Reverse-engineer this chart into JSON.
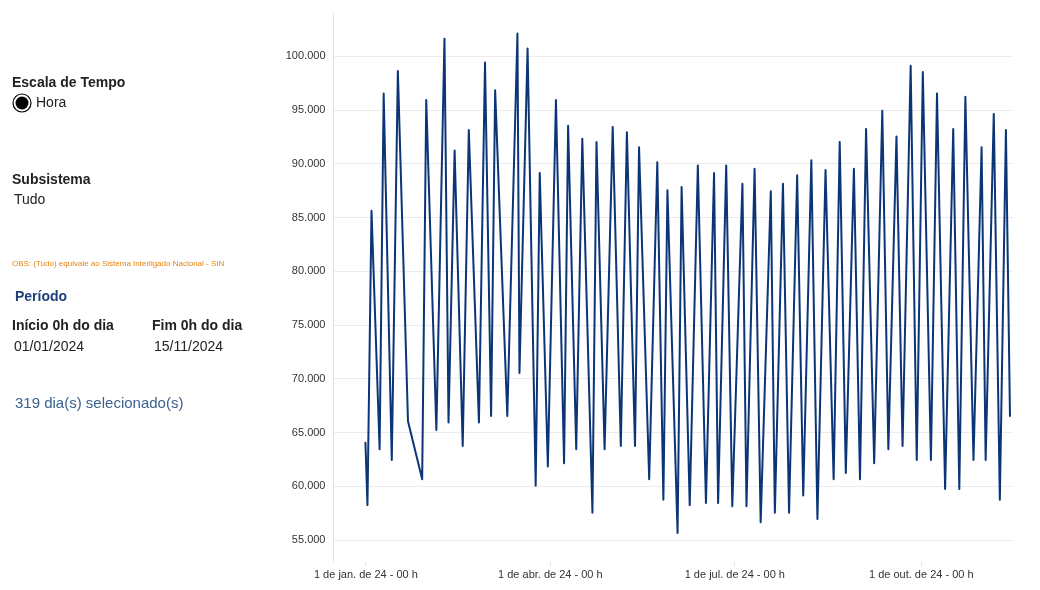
{
  "chart_data": {
    "type": "line",
    "x": [
      "2024-01-01",
      "2024-01-02",
      "2024-01-04",
      "2024-01-08",
      "2024-01-10",
      "2024-01-14",
      "2024-01-17",
      "2024-01-22",
      "2024-01-29",
      "2024-01-31",
      "2024-02-05",
      "2024-02-09",
      "2024-02-11",
      "2024-02-14",
      "2024-02-18",
      "2024-02-21",
      "2024-02-26",
      "2024-02-29",
      "2024-03-03",
      "2024-03-05",
      "2024-03-11",
      "2024-03-16",
      "2024-03-17",
      "2024-03-21",
      "2024-03-25",
      "2024-03-27",
      "2024-03-31",
      "2024-04-04",
      "2024-04-08",
      "2024-04-10",
      "2024-04-14",
      "2024-04-17",
      "2024-04-22",
      "2024-04-24",
      "2024-04-28",
      "2024-05-02",
      "2024-05-06",
      "2024-05-09",
      "2024-05-13",
      "2024-05-15",
      "2024-05-20",
      "2024-05-24",
      "2024-05-27",
      "2024-05-29",
      "2024-06-03",
      "2024-06-05",
      "2024-06-09",
      "2024-06-13",
      "2024-06-17",
      "2024-06-21",
      "2024-06-23",
      "2024-06-27",
      "2024-06-30",
      "2024-07-05",
      "2024-07-07",
      "2024-07-11",
      "2024-07-14",
      "2024-07-19",
      "2024-07-21",
      "2024-07-25",
      "2024-07-28",
      "2024-08-01",
      "2024-08-04",
      "2024-08-08",
      "2024-08-11",
      "2024-08-15",
      "2024-08-19",
      "2024-08-22",
      "2024-08-25",
      "2024-08-29",
      "2024-09-01",
      "2024-09-04",
      "2024-09-08",
      "2024-09-12",
      "2024-09-15",
      "2024-09-19",
      "2024-09-22",
      "2024-09-26",
      "2024-09-29",
      "2024-10-02",
      "2024-10-06",
      "2024-10-09",
      "2024-10-13",
      "2024-10-17",
      "2024-10-20",
      "2024-10-23",
      "2024-10-27",
      "2024-10-31",
      "2024-11-02",
      "2024-11-06",
      "2024-11-09",
      "2024-11-12",
      "2024-11-14"
    ],
    "series": [
      {
        "color": "#0b3577",
        "values": [
          64000,
          58200,
          85600,
          63400,
          96500,
          62400,
          98600,
          66000,
          60600,
          95900,
          65200,
          101600,
          65900,
          91200,
          63700,
          93100,
          65900,
          99400,
          66500,
          96800,
          66500,
          102100,
          70500,
          100700,
          60000,
          89100,
          61800,
          95900,
          62100,
          93500,
          63400,
          92300,
          57500,
          92000,
          63400,
          93400,
          63700,
          92900,
          63700,
          91500,
          60600,
          90100,
          58700,
          87500,
          55600,
          87800,
          58200,
          89800,
          58400,
          89100,
          58400,
          89800,
          58100,
          88100,
          58100,
          89500,
          56600,
          87400,
          57500,
          88100,
          57500,
          88900,
          59100,
          90300,
          56900,
          89400,
          60600,
          92000,
          61200,
          89500,
          60600,
          93200,
          62100,
          94900,
          63400,
          92500,
          63700,
          99100,
          62400,
          98500,
          62400,
          96500,
          59700,
          93200,
          59700,
          96200,
          62400,
          91500,
          62400,
          94600,
          58700,
          93100,
          66500
        ]
      }
    ],
    "xlim": [
      "2023-12-16",
      "2024-11-15"
    ],
    "xticks": [
      {
        "value": "2024-01-01",
        "label": "1 de jan. de 24 - 00 h"
      },
      {
        "value": "2024-04-01",
        "label": "1 de abr. de 24 - 00 h"
      },
      {
        "value": "2024-07-01",
        "label": "1 de jul. de 24 - 00 h"
      },
      {
        "value": "2024-10-01",
        "label": "1 de out. de 24 - 00 h"
      }
    ],
    "ylim": [
      53000,
      104000
    ],
    "yticks": [
      {
        "value": 55000,
        "label": "55.000"
      },
      {
        "value": 60000,
        "label": "60.000"
      },
      {
        "value": 65000,
        "label": "65.000"
      },
      {
        "value": 70000,
        "label": "70.000"
      },
      {
        "value": 75000,
        "label": "75.000"
      },
      {
        "value": 80000,
        "label": "80.000"
      },
      {
        "value": 85000,
        "label": "85.000"
      },
      {
        "value": 90000,
        "label": "90.000"
      },
      {
        "value": 95000,
        "label": "95.000"
      },
      {
        "value": 100000,
        "label": "100.000"
      }
    ],
    "grid": "y",
    "marker": "none",
    "line_style": "solid",
    "annotations": [
      "Escala de Tempo",
      "Hora",
      "Subsistema",
      "Tudo",
      "OBS: (Tudo) equivale ao Sistema Interligado Nacional - SIN",
      "Período",
      "Início 0h do dia",
      "01/01/2024",
      "Fim 0h do dia",
      "15/11/2024",
      "319 dia(s) selecionado(s)"
    ]
  }
}
